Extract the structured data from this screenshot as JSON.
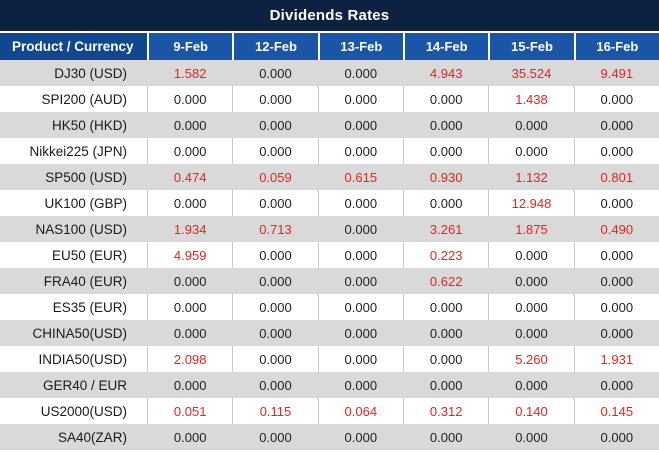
{
  "title": "Dividends Rates",
  "colors": {
    "title_bar": "#0D2240",
    "header_product_bg": "#10478F",
    "header_date_bg": "#1B55A6",
    "row_alt_bg": "#D9D9D9",
    "row_bg": "#FFFFFF",
    "value_zero": "#1F1F1F",
    "value_nonzero": "#ED1F1F"
  },
  "table": {
    "product_header": "Product / Currency",
    "date_headers": [
      "9-Feb",
      "12-Feb",
      "13-Feb",
      "14-Feb",
      "15-Feb",
      "16-Feb"
    ],
    "rows": [
      {
        "product": "DJ30 (USD)",
        "values": [
          "1.582",
          "0.000",
          "0.000",
          "4.943",
          "35.524",
          "9.491"
        ]
      },
      {
        "product": "SPI200 (AUD)",
        "values": [
          "0.000",
          "0.000",
          "0.000",
          "0.000",
          "1.438",
          "0.000"
        ]
      },
      {
        "product": "HK50 (HKD)",
        "values": [
          "0.000",
          "0.000",
          "0.000",
          "0.000",
          "0.000",
          "0.000"
        ]
      },
      {
        "product": "Nikkei225 (JPN)",
        "values": [
          "0.000",
          "0.000",
          "0.000",
          "0.000",
          "0.000",
          "0.000"
        ]
      },
      {
        "product": "SP500 (USD)",
        "values": [
          "0.474",
          "0.059",
          "0.615",
          "0.930",
          "1.132",
          "0.801"
        ]
      },
      {
        "product": "UK100 (GBP)",
        "values": [
          "0.000",
          "0.000",
          "0.000",
          "0.000",
          "12.948",
          "0.000"
        ]
      },
      {
        "product": "NAS100 (USD)",
        "values": [
          "1.934",
          "0.713",
          "0.000",
          "3.261",
          "1.875",
          "0.490"
        ]
      },
      {
        "product": "EU50 (EUR)",
        "values": [
          "4.959",
          "0.000",
          "0.000",
          "0.223",
          "0.000",
          "0.000"
        ]
      },
      {
        "product": "FRA40 (EUR)",
        "values": [
          "0.000",
          "0.000",
          "0.000",
          "0.622",
          "0.000",
          "0.000"
        ]
      },
      {
        "product": "ES35 (EUR)",
        "values": [
          "0.000",
          "0.000",
          "0.000",
          "0.000",
          "0.000",
          "0.000"
        ]
      },
      {
        "product": "CHINA50(USD)",
        "values": [
          "0.000",
          "0.000",
          "0.000",
          "0.000",
          "0.000",
          "0.000"
        ]
      },
      {
        "product": "INDIA50(USD)",
        "values": [
          "2.098",
          "0.000",
          "0.000",
          "0.000",
          "5.260",
          "1.931"
        ]
      },
      {
        "product": "GER40 / EUR",
        "values": [
          "0.000",
          "0.000",
          "0.000",
          "0.000",
          "0.000",
          "0.000"
        ]
      },
      {
        "product": "US2000(USD)",
        "values": [
          "0.051",
          "0.115",
          "0.064",
          "0.312",
          "0.140",
          "0.145"
        ]
      },
      {
        "product": "SA40(ZAR)",
        "values": [
          "0.000",
          "0.000",
          "0.000",
          "0.000",
          "0.000",
          "0.000"
        ]
      }
    ]
  }
}
